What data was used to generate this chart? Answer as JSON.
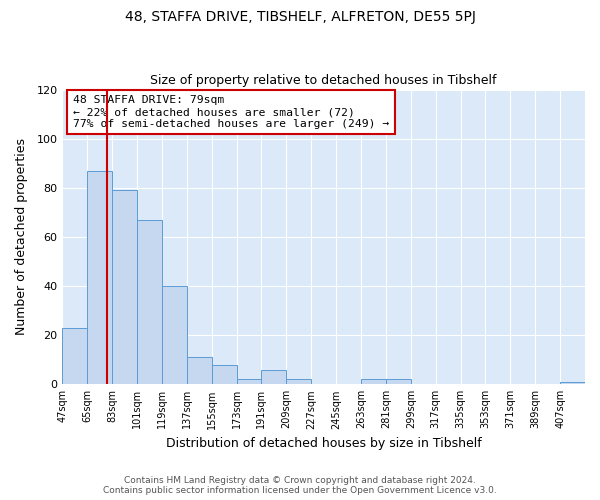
{
  "title": "48, STAFFA DRIVE, TIBSHELF, ALFRETON, DE55 5PJ",
  "subtitle": "Size of property relative to detached houses in Tibshelf",
  "xlabel": "Distribution of detached houses by size in Tibshelf",
  "ylabel": "Number of detached properties",
  "bar_labels": [
    "47sqm",
    "65sqm",
    "83sqm",
    "101sqm",
    "119sqm",
    "137sqm",
    "155sqm",
    "173sqm",
    "191sqm",
    "209sqm",
    "227sqm",
    "245sqm",
    "263sqm",
    "281sqm",
    "299sqm",
    "317sqm",
    "335sqm",
    "353sqm",
    "371sqm",
    "389sqm",
    "407sqm"
  ],
  "bar_values": [
    23,
    87,
    79,
    67,
    40,
    11,
    8,
    2,
    6,
    2,
    0,
    0,
    2,
    2,
    0,
    0,
    0,
    0,
    0,
    0,
    1
  ],
  "bar_color": "#c5d8f0",
  "bar_edgecolor": "#5b9bd5",
  "vline_x_label": "83sqm",
  "vline_color": "#cc0000",
  "ylim": [
    0,
    120
  ],
  "yticks": [
    0,
    20,
    40,
    60,
    80,
    100,
    120
  ],
  "annotation_text": "48 STAFFA DRIVE: 79sqm\n← 22% of detached houses are smaller (72)\n77% of semi-detached houses are larger (249) →",
  "annotation_box_facecolor": "#ffffff",
  "annotation_box_edgecolor": "#cc0000",
  "figure_facecolor": "#ffffff",
  "plot_bg_color": "#dce9f8",
  "footer_line1": "Contains HM Land Registry data © Crown copyright and database right 2024.",
  "footer_line2": "Contains public sector information licensed under the Open Government Licence v3.0.",
  "bin_width": 18,
  "vline_x": 79
}
